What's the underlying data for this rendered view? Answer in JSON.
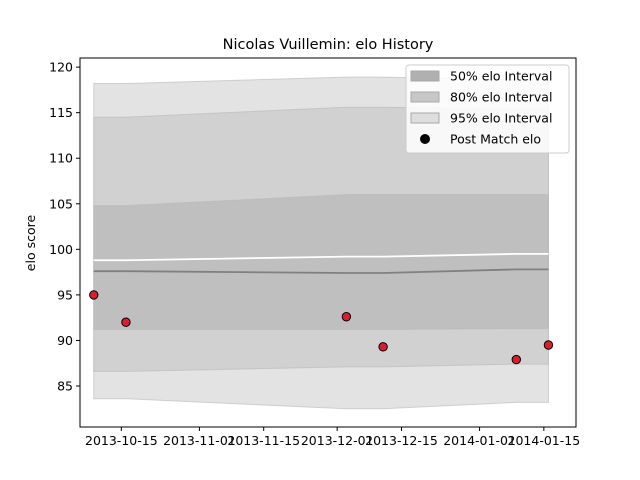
{
  "chart_data": {
    "type": "area",
    "title": "Nicolas Vuillemin: elo History",
    "xlabel": "",
    "ylabel": "elo score",
    "xlim": [
      "2013-10-06",
      "2014-01-22"
    ],
    "ylim": [
      80.5,
      121
    ],
    "x_ticks": [
      "2013-10-15",
      "2013-11-01",
      "2013-11-15",
      "2013-12-01",
      "2013-12-15",
      "2014-01-01",
      "2014-01-15"
    ],
    "y_ticks": [
      85,
      90,
      95,
      100,
      105,
      110,
      115,
      120
    ],
    "grid": false,
    "legend_position": "top-right",
    "dates": [
      "2013-10-09",
      "2013-10-16",
      "2013-12-03",
      "2013-12-11",
      "2014-01-09",
      "2014-01-16"
    ],
    "bands": [
      {
        "name": "95% elo Interval",
        "color": "#e3e3e3",
        "lower": [
          83.6,
          83.6,
          82.5,
          82.5,
          83.2,
          83.2
        ],
        "upper": [
          118.2,
          118.2,
          118.9,
          118.9,
          118.6,
          118.6
        ]
      },
      {
        "name": "80% elo Interval",
        "color": "#d1d1d1",
        "lower": [
          86.6,
          86.6,
          87.1,
          87.1,
          87.4,
          87.4
        ],
        "upper": [
          114.5,
          114.5,
          115.6,
          115.6,
          115.4,
          115.4
        ]
      },
      {
        "name": "50% elo Interval",
        "color": "#bfbfbf",
        "lower": [
          91.2,
          91.2,
          91.2,
          91.2,
          91.3,
          91.3
        ],
        "upper": [
          104.8,
          104.8,
          106.0,
          106.0,
          106.0,
          106.0
        ]
      }
    ],
    "mean_line": {
      "color": "#808080",
      "values": [
        97.6,
        97.6,
        97.4,
        97.4,
        97.8,
        97.8
      ]
    },
    "white_line": {
      "color": "#ffffff",
      "values": [
        98.8,
        98.8,
        99.2,
        99.2,
        99.5,
        99.5
      ]
    },
    "series": [
      {
        "name": "Post Match elo",
        "type": "scatter",
        "color": "#d62031",
        "x": [
          "2013-10-09",
          "2013-10-16",
          "2013-12-03",
          "2013-12-11",
          "2014-01-09",
          "2014-01-16"
        ],
        "y": [
          95.0,
          92.0,
          92.6,
          89.3,
          87.9,
          89.5
        ]
      }
    ],
    "legend": [
      {
        "label": "50% elo Interval",
        "swatch": "#b0b0b0"
      },
      {
        "label": "80% elo Interval",
        "swatch": "#c7c7c7"
      },
      {
        "label": "95% elo Interval",
        "swatch": "#dedede"
      },
      {
        "label": "Post Match elo",
        "swatch": "#000000",
        "marker": "circle"
      }
    ]
  }
}
